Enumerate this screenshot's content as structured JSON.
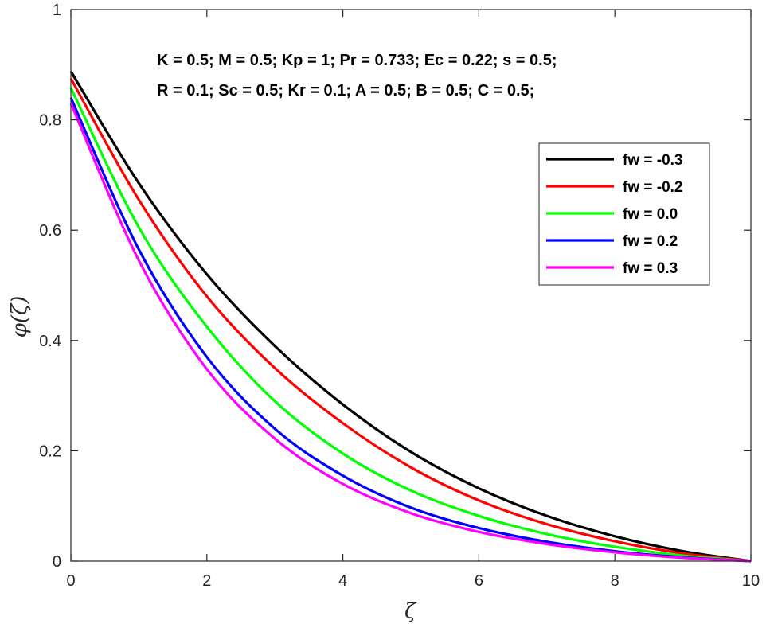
{
  "chart_data": {
    "type": "line",
    "title": "",
    "xlabel": "ζ",
    "ylabel": "φ(ζ)",
    "xlim": [
      0,
      10
    ],
    "ylim": [
      0,
      1
    ],
    "xticks": [
      0,
      2,
      4,
      6,
      8,
      10
    ],
    "yticks": [
      0,
      0.2,
      0.4,
      0.6,
      0.8,
      1
    ],
    "xtick_labels": [
      "0",
      "2",
      "4",
      "6",
      "8",
      "10"
    ],
    "ytick_labels": [
      "0",
      "0.2",
      "0.4",
      "0.6",
      "0.8",
      "1"
    ],
    "grid": false,
    "legend_position": "top-right",
    "annotations": [
      "K = 0.5; M = 0.5; Kp = 1; Pr = 0.733; Ec = 0.22; s = 0.5;",
      "R = 0.1; Sc = 0.5; Kr = 0.1; A = 0.5; B = 0.5; C = 0.5;"
    ],
    "x": [
      0,
      1,
      2,
      3,
      4,
      5,
      6,
      7,
      8,
      9,
      10
    ],
    "series": [
      {
        "name": "fw = -0.3",
        "color": "#000000",
        "values": [
          0.888,
          0.685,
          0.52,
          0.39,
          0.284,
          0.198,
          0.132,
          0.082,
          0.045,
          0.018,
          0.0
        ]
      },
      {
        "name": "fw = -0.2",
        "color": "#ff0000",
        "values": [
          0.875,
          0.655,
          0.48,
          0.35,
          0.25,
          0.17,
          0.11,
          0.067,
          0.036,
          0.014,
          0.0
        ]
      },
      {
        "name": "fw = 0.0",
        "color": "#00ff00",
        "values": [
          0.858,
          0.605,
          0.425,
          0.29,
          0.195,
          0.128,
          0.082,
          0.049,
          0.026,
          0.01,
          0.0
        ]
      },
      {
        "name": "fw = 0.2",
        "color": "#0000ff",
        "values": [
          0.84,
          0.565,
          0.37,
          0.24,
          0.155,
          0.097,
          0.06,
          0.035,
          0.018,
          0.007,
          0.0
        ]
      },
      {
        "name": "fw = 0.3",
        "color": "#ff00ff",
        "values": [
          0.83,
          0.545,
          0.348,
          0.222,
          0.14,
          0.087,
          0.053,
          0.031,
          0.016,
          0.006,
          0.0
        ]
      }
    ]
  }
}
